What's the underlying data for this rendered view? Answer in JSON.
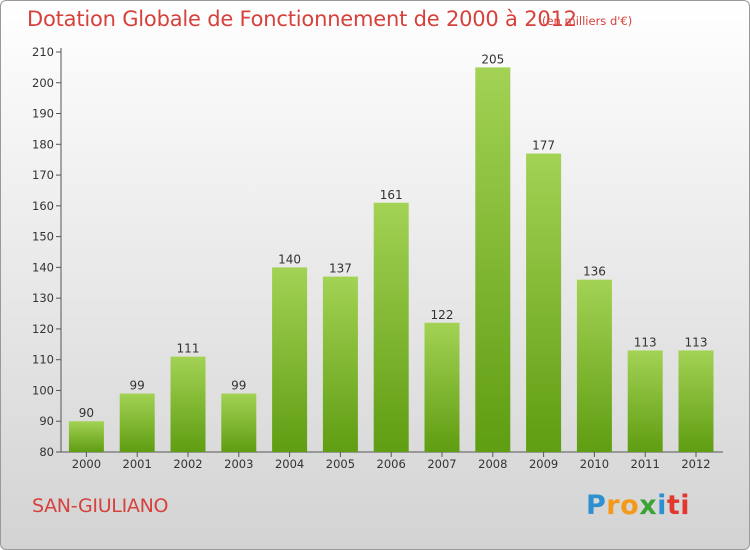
{
  "header": {
    "title": "Dotation Globale de Fonctionnement de 2000 à 2012",
    "subtitle": "(en milliers d'€)"
  },
  "footer": {
    "commune": "SAN-GIULIANO",
    "logo_text": "Proxiti",
    "logo_letters": [
      "P",
      "r",
      "o",
      "x",
      "i",
      "ti"
    ]
  },
  "colors": {
    "title": "#d6413b",
    "bar_top": "#a3d254",
    "bar_bottom": "#5f9d12",
    "axis": "#555555"
  },
  "chart_data": {
    "type": "bar",
    "categories": [
      "2000",
      "2001",
      "2002",
      "2003",
      "2004",
      "2005",
      "2006",
      "2007",
      "2008",
      "2009",
      "2010",
      "2011",
      "2012"
    ],
    "values": [
      90,
      99,
      111,
      99,
      140,
      137,
      161,
      122,
      205,
      177,
      136,
      113,
      113
    ],
    "ylim": [
      80,
      210
    ],
    "yticks": [
      80,
      90,
      100,
      110,
      120,
      130,
      140,
      150,
      160,
      170,
      180,
      190,
      200,
      210
    ],
    "grid": false,
    "legend": "none",
    "data_labels": true
  }
}
